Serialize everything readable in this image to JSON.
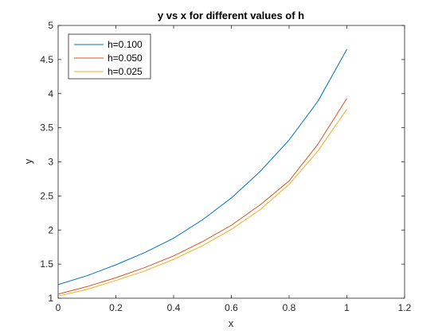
{
  "chart_data": {
    "type": "line",
    "title": "y vs x for different values of h",
    "xlabel": "x",
    "ylabel": "y",
    "xlim": [
      0,
      1.2
    ],
    "ylim": [
      1,
      5
    ],
    "xticks": [
      "0",
      "0.2",
      "0.4",
      "0.6",
      "0.8",
      "1",
      "1.2"
    ],
    "yticks": [
      "1",
      "1.5",
      "2",
      "2.5",
      "3",
      "3.5",
      "4",
      "4.5",
      "5"
    ],
    "grid": false,
    "legend_position": "top-left",
    "series": [
      {
        "name": "h=0.100",
        "color": "#0072BD",
        "x": [
          0,
          0.1,
          0.2,
          0.3,
          0.4,
          0.5,
          0.6,
          0.7,
          0.8,
          0.9,
          1.0
        ],
        "y": [
          1.2,
          1.33,
          1.49,
          1.67,
          1.88,
          2.15,
          2.47,
          2.86,
          3.32,
          3.89,
          4.65
        ]
      },
      {
        "name": "h=0.050",
        "color": "#D95319",
        "x": [
          0,
          0.1,
          0.2,
          0.3,
          0.4,
          0.5,
          0.6,
          0.7,
          0.8,
          0.9,
          1.0
        ],
        "y": [
          1.06,
          1.17,
          1.3,
          1.45,
          1.62,
          1.83,
          2.07,
          2.37,
          2.72,
          3.26,
          3.93
        ]
      },
      {
        "name": "h=0.025",
        "color": "#EDB120",
        "x": [
          0,
          0.1,
          0.2,
          0.3,
          0.4,
          0.5,
          0.6,
          0.7,
          0.8,
          0.9,
          1.0
        ],
        "y": [
          1.03,
          1.13,
          1.26,
          1.4,
          1.57,
          1.77,
          2.01,
          2.3,
          2.67,
          3.16,
          3.77
        ]
      }
    ]
  }
}
